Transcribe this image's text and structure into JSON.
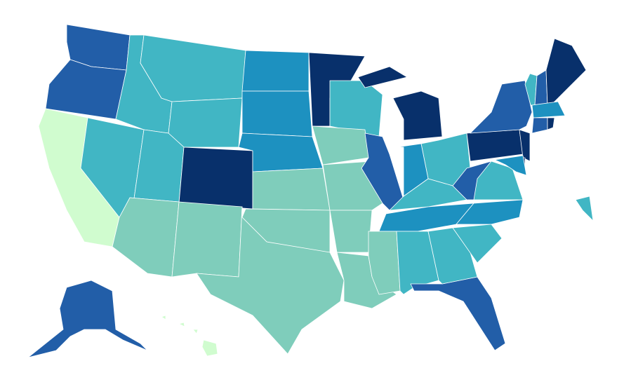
{
  "regions": [
    {
      "color": "#225ea8"
    },
    {
      "color": "#225ea8"
    },
    {
      "color": "#d0fccf"
    },
    {
      "color": "#41b6c4"
    },
    {
      "color": "#41b6c4"
    },
    {
      "color": "#41b6c4"
    },
    {
      "color": "#41b6c4"
    },
    {
      "color": "#41b6c4"
    },
    {
      "color": "#08306b"
    },
    {
      "color": "#7fcdbb"
    },
    {
      "color": "#7fcdbb"
    },
    {
      "color": "#1d91c0"
    },
    {
      "color": "#1d91c0"
    },
    {
      "color": "#1d91c0"
    },
    {
      "color": "#7fcdbb"
    },
    {
      "color": "#7fcdbb"
    },
    {
      "color": "#7fcdbb"
    },
    {
      "color": "#08306b"
    },
    {
      "color": "#41b6c4"
    },
    {
      "color": "#7fcdbb"
    },
    {
      "color": "#7fcdbb"
    },
    {
      "color": "#7fcdbb"
    },
    {
      "color": "#41b6c4"
    },
    {
      "color": "#225ea8"
    },
    {
      "color": "#08306b"
    },
    {
      "color": "#08306b"
    },
    {
      "color": "#1d91c0"
    },
    {
      "color": "#41b6c4"
    },
    {
      "color": "#41b6c4"
    },
    {
      "color": "#1d91c0"
    },
    {
      "color": "#7fcdbb"
    },
    {
      "color": "#7fcdbb"
    },
    {
      "color": "#41b6c4"
    },
    {
      "color": "#225ea8"
    },
    {
      "color": "#41b6c4"
    },
    {
      "color": "#1d91c0"
    },
    {
      "color": "#41b6c4"
    },
    {
      "color": "#225ea8"
    },
    {
      "color": "#08306b"
    },
    {
      "color": "#225ea8"
    },
    {
      "color": "#41b6c4"
    },
    {
      "color": "#225ea8"
    },
    {
      "color": "#08306b"
    },
    {
      "color": "#1d91c0"
    },
    {
      "color": "#225ea8"
    },
    {
      "color": "#08306b"
    },
    {
      "color": "#08306b"
    },
    {
      "color": "#08306b"
    },
    {
      "color": "#1d91c0"
    },
    {
      "color": "#41b6c4"
    },
    {
      "color": "#225ea8"
    },
    {
      "color": "#d0fccf"
    }
  ]
}
